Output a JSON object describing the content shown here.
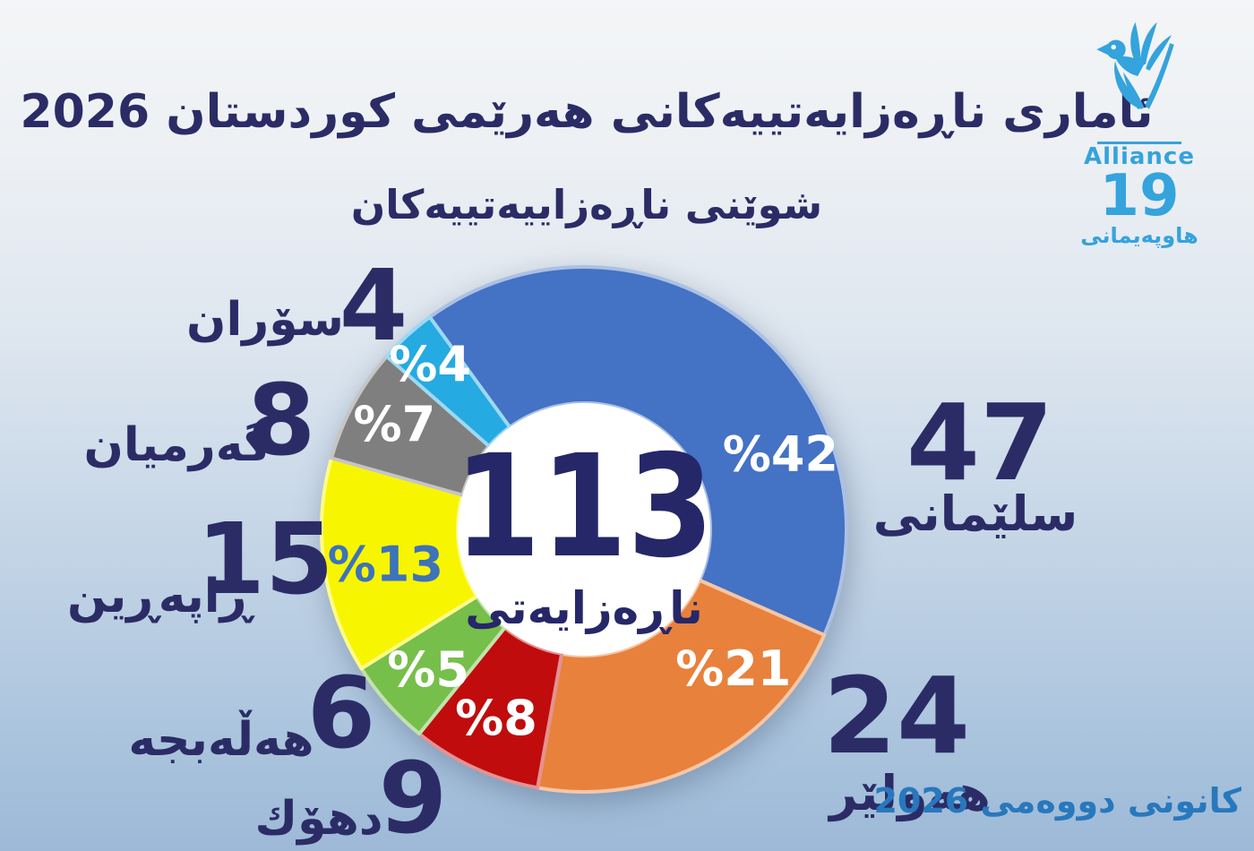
{
  "title": "ئاماری ناڕەزایەتییەکانی هەرێمی کوردستان 2026",
  "subtitle": "شوێنی ناڕەزاییەتییەکان",
  "center": {
    "total": "113",
    "label": "ناڕەزایەتی"
  },
  "date_note": "كانونی دووەمی 2026",
  "logo": {
    "brand": "Alliance",
    "number": "19",
    "brand_kurdish": "هاوپەیمانی",
    "icon": "dove-hand-icon",
    "color": "#35A3DC"
  },
  "colors": {
    "text_navy": "#2B2C66",
    "date_blue": "#2878BD",
    "background_top": "#F3F5F7",
    "background_bottom": "#9DB9D7"
  },
  "chart_data": {
    "type": "pie",
    "donut": true,
    "title": "شوێنی ناڕەزاییەتییەکان",
    "total": 113,
    "center_label": "ناڕەزایەتی",
    "legend_position": "around",
    "slices": [
      {
        "key": "slemani",
        "label": "سلێمانی",
        "value": 47,
        "pct": 42,
        "color": "#4472C4",
        "pct_text_color": "#FFFFFF"
      },
      {
        "key": "hewler",
        "label": "هەولێر",
        "value": 24,
        "pct": 21,
        "color": "#E8813C",
        "pct_text_color": "#FFFFFF"
      },
      {
        "key": "duhok",
        "label": "دهۆك",
        "value": 9,
        "pct": 8,
        "color": "#C00C0C",
        "pct_text_color": "#FFFFFF"
      },
      {
        "key": "halabja",
        "label": "هەڵەبجە",
        "value": 6,
        "pct": 5,
        "color": "#76BF4B",
        "pct_text_color": "#FFFFFF"
      },
      {
        "key": "raparin",
        "label": "ڕاپەڕین",
        "value": 15,
        "pct": 13,
        "color": "#F8F500",
        "pct_text_color": "#3C73BB"
      },
      {
        "key": "garmian",
        "label": "گەرمیان",
        "value": 8,
        "pct": 7,
        "color": "#7F7F7F",
        "pct_text_color": "#FFFFFF"
      },
      {
        "key": "soran",
        "label": "سۆران",
        "value": 4,
        "pct": 4,
        "color": "#25AAE1",
        "pct_text_color": "#FFFFFF"
      }
    ]
  }
}
